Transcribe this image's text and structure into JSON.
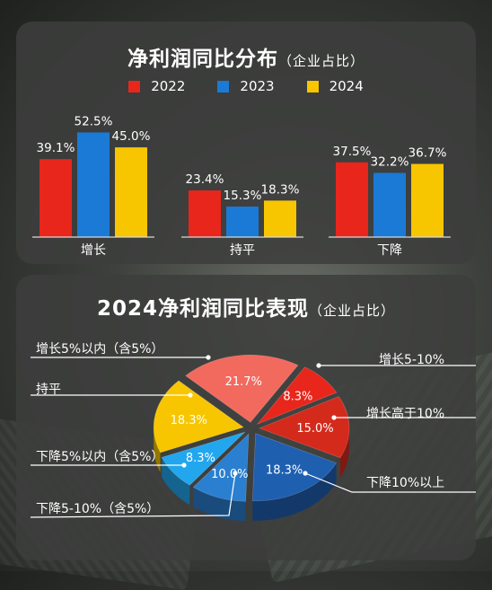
{
  "chart_data": [
    {
      "type": "bar",
      "title": "净利润同比分布",
      "subtitle": "（企业占比）",
      "categories": [
        "增长",
        "持平",
        "下降"
      ],
      "series": [
        {
          "name": "2022",
          "color": "#e8261c",
          "values": [
            39.1,
            23.4,
            37.5
          ],
          "labels": [
            "39.1%",
            "23.4%",
            "37.5%"
          ]
        },
        {
          "name": "2023",
          "color": "#1a7ad6",
          "values": [
            52.5,
            15.3,
            32.2
          ],
          "labels": [
            "52.5%",
            "15.3%",
            "32.2%"
          ]
        },
        {
          "name": "2024",
          "color": "#f7c600",
          "values": [
            45.0,
            18.3,
            36.7
          ],
          "labels": [
            "45.0%",
            "18.3%",
            "36.7%"
          ]
        }
      ],
      "legend_position": "top-center",
      "grid": false
    },
    {
      "type": "pie",
      "title": "2024净利润同比表现",
      "subtitle": "（企业占比）",
      "slices": [
        {
          "name": "增长5-10%",
          "value": 8.3,
          "label": "8.3%",
          "color": "#e8261c"
        },
        {
          "name": "增长高于10%",
          "value": 15.0,
          "label": "15.0%",
          "color": "#d42a1c"
        },
        {
          "name": "下降10%以上",
          "value": 18.3,
          "label": "18.3%",
          "color": "#1f5fb0"
        },
        {
          "name": "下降5-10%（含5%）",
          "value": 10.0,
          "label": "10.0%",
          "color": "#2a7fd0"
        },
        {
          "name": "下降5%以内（含5%）",
          "value": 8.3,
          "label": "8.3%",
          "color": "#22a6ee"
        },
        {
          "name": "持平",
          "value": 18.3,
          "label": "18.3%",
          "color": "#f7c600"
        },
        {
          "name": "增长5%以内（含5%）",
          "value": 21.7,
          "label": "21.7%",
          "color": "#f26a5e"
        }
      ]
    }
  ]
}
